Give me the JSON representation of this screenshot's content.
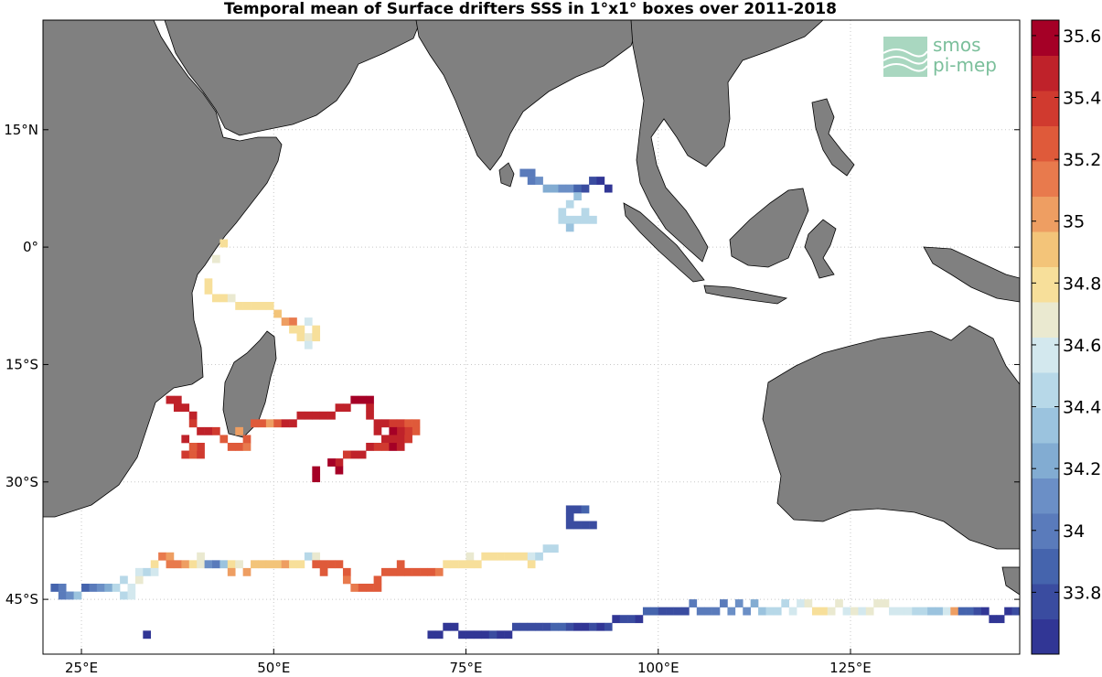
{
  "title": "Temporal mean of Surface drifters SSS in 1°x1° boxes over 2011-2018",
  "logo": {
    "line1": "smos",
    "line2": "pi-mep"
  },
  "map": {
    "lon_range": [
      20,
      147
    ],
    "lat_range": [
      -52,
      29
    ],
    "lon_ticks": [
      {
        "lon": 25,
        "label": "25°E"
      },
      {
        "lon": 50,
        "label": "50°E"
      },
      {
        "lon": 75,
        "label": "75°E"
      },
      {
        "lon": 100,
        "label": "100°E"
      },
      {
        "lon": 125,
        "label": "125°E"
      }
    ],
    "lat_ticks": [
      {
        "lat": 15,
        "label": "15°N"
      },
      {
        "lat": 0,
        "label": "0°"
      },
      {
        "lat": -15,
        "label": "15°S"
      },
      {
        "lat": -30,
        "label": "30°S"
      },
      {
        "lat": -45,
        "label": "45°S"
      }
    ],
    "grid": true,
    "land_color": "#808080"
  },
  "colorbar": {
    "min": 33.6,
    "max": 35.65,
    "tick_labels": [
      "35.6",
      "35.4",
      "35.2",
      "35",
      "34.8",
      "34.6",
      "34.4",
      "34.2",
      "34",
      "33.8"
    ],
    "tick_values": [
      35.6,
      35.4,
      35.2,
      35.0,
      34.8,
      34.6,
      34.4,
      34.2,
      34.0,
      33.8
    ],
    "colors": [
      "#313695",
      "#3a4ca0",
      "#4564ad",
      "#5a7bbb",
      "#6b8fc6",
      "#82acd2",
      "#9bc3de",
      "#b7d8e8",
      "#d3e8ee",
      "#eae9d0",
      "#f7df9a",
      "#f3c479",
      "#ee9e62",
      "#e87a4d",
      "#df5a3a",
      "#d03a2f",
      "#bf222a",
      "#a50026"
    ]
  },
  "chart_data": {
    "type": "heatmap",
    "variable": "SSS",
    "cells": [
      [
        82,
        9,
        34.0
      ],
      [
        83,
        9,
        34.0
      ],
      [
        83,
        8,
        34.05
      ],
      [
        84,
        8,
        34.1
      ],
      [
        85,
        7,
        34.2
      ],
      [
        86,
        7,
        34.2
      ],
      [
        87,
        7,
        34.15
      ],
      [
        88,
        7,
        34.1
      ],
      [
        89,
        7,
        33.9
      ],
      [
        90,
        7,
        33.8
      ],
      [
        91,
        8,
        33.75
      ],
      [
        92,
        8,
        33.7
      ],
      [
        93,
        7,
        33.7
      ],
      [
        89,
        6,
        34.3
      ],
      [
        88,
        5,
        34.4
      ],
      [
        87,
        4,
        34.45
      ],
      [
        87,
        3,
        34.5
      ],
      [
        88,
        3,
        34.4
      ],
      [
        89,
        3,
        34.4
      ],
      [
        90,
        3,
        34.4
      ],
      [
        91,
        3,
        34.4
      ],
      [
        88,
        2,
        34.3
      ],
      [
        90,
        4,
        34.4
      ],
      [
        43,
        0,
        34.8
      ],
      [
        42,
        -2,
        34.7
      ],
      [
        41,
        -5,
        34.85
      ],
      [
        41,
        -6,
        34.85
      ],
      [
        42,
        -7,
        34.8
      ],
      [
        43,
        -7,
        34.8
      ],
      [
        44,
        -7,
        34.65
      ],
      [
        45,
        -8,
        34.8
      ],
      [
        46,
        -8,
        34.85
      ],
      [
        47,
        -8,
        34.8
      ],
      [
        48,
        -8,
        34.8
      ],
      [
        49,
        -8,
        34.8
      ],
      [
        50,
        -9,
        34.95
      ],
      [
        51,
        -10,
        35.0
      ],
      [
        52,
        -10,
        35.1
      ],
      [
        52,
        -11,
        34.8
      ],
      [
        53,
        -11,
        34.8
      ],
      [
        53,
        -12,
        34.75
      ],
      [
        54,
        -12,
        34.7
      ],
      [
        54,
        -10,
        34.55
      ],
      [
        55,
        -12,
        34.8
      ],
      [
        55,
        -11,
        34.8
      ],
      [
        54,
        -13,
        34.6
      ],
      [
        36,
        -20,
        35.45
      ],
      [
        37,
        -20,
        35.5
      ],
      [
        37,
        -21,
        35.5
      ],
      [
        38,
        -21,
        35.45
      ],
      [
        39,
        -22,
        35.5
      ],
      [
        39,
        -23,
        35.4
      ],
      [
        40,
        -24,
        35.5
      ],
      [
        41,
        -24,
        35.45
      ],
      [
        42,
        -24,
        35.35
      ],
      [
        40,
        -26,
        35.4
      ],
      [
        39,
        -26,
        35.3
      ],
      [
        38,
        -25,
        35.45
      ],
      [
        38,
        -27,
        35.4
      ],
      [
        39,
        -27,
        35.3
      ],
      [
        40,
        -27,
        35.35
      ],
      [
        43,
        -25,
        35.3
      ],
      [
        44,
        -26,
        35.25
      ],
      [
        45,
        -26,
        35.3
      ],
      [
        46,
        -26,
        35.1
      ],
      [
        46,
        -25,
        35.2
      ],
      [
        45,
        -24,
        35.0
      ],
      [
        47,
        -23,
        35.2
      ],
      [
        48,
        -23,
        35.3
      ],
      [
        49,
        -23,
        35.0
      ],
      [
        50,
        -23,
        35.2
      ],
      [
        51,
        -23,
        35.5
      ],
      [
        52,
        -23,
        35.45
      ],
      [
        53,
        -22,
        35.45
      ],
      [
        54,
        -22,
        35.5
      ],
      [
        55,
        -22,
        35.5
      ],
      [
        56,
        -22,
        35.5
      ],
      [
        57,
        -22,
        35.5
      ],
      [
        58,
        -21,
        35.5
      ],
      [
        59,
        -21,
        35.5
      ],
      [
        60,
        -20,
        35.55
      ],
      [
        61,
        -20,
        35.55
      ],
      [
        62,
        -20,
        35.55
      ],
      [
        62,
        -21,
        35.5
      ],
      [
        62,
        -22,
        35.5
      ],
      [
        63,
        -23,
        35.45
      ],
      [
        63,
        -24,
        35.5
      ],
      [
        64,
        -23,
        35.45
      ],
      [
        65,
        -23,
        35.4
      ],
      [
        66,
        -23,
        35.35
      ],
      [
        67,
        -23,
        35.3
      ],
      [
        68,
        -23,
        35.25
      ],
      [
        68,
        -24,
        35.3
      ],
      [
        67,
        -24,
        35.4
      ],
      [
        66,
        -24,
        35.5
      ],
      [
        65,
        -24,
        35.55
      ],
      [
        64,
        -25,
        35.45
      ],
      [
        65,
        -25,
        35.45
      ],
      [
        66,
        -25,
        35.5
      ],
      [
        67,
        -25,
        35.4
      ],
      [
        64,
        -26,
        35.4
      ],
      [
        65,
        -26,
        35.55
      ],
      [
        66,
        -26,
        35.5
      ],
      [
        63,
        -26,
        35.4
      ],
      [
        62,
        -26,
        35.45
      ],
      [
        61,
        -27,
        35.45
      ],
      [
        60,
        -27,
        35.5
      ],
      [
        59,
        -27,
        35.4
      ],
      [
        58,
        -28,
        35.5
      ],
      [
        57,
        -28,
        35.55
      ],
      [
        58,
        -29,
        35.55
      ],
      [
        55,
        -29,
        35.6
      ],
      [
        55,
        -30,
        35.6
      ],
      [
        88,
        -34,
        33.8
      ],
      [
        89,
        -34,
        33.8
      ],
      [
        90,
        -34,
        33.85
      ],
      [
        88,
        -35,
        33.8
      ],
      [
        88,
        -36,
        33.75
      ],
      [
        89,
        -36,
        33.75
      ],
      [
        90,
        -36,
        33.75
      ],
      [
        91,
        -36,
        33.75
      ],
      [
        21,
        -44,
        33.9
      ],
      [
        22,
        -44,
        33.95
      ],
      [
        22,
        -45,
        34.05
      ],
      [
        23,
        -45,
        34.1
      ],
      [
        24,
        -45,
        34.3
      ],
      [
        25,
        -44,
        33.85
      ],
      [
        26,
        -44,
        34.0
      ],
      [
        27,
        -44,
        34.1
      ],
      [
        28,
        -44,
        34.2
      ],
      [
        29,
        -44,
        34.4
      ],
      [
        30,
        -43,
        34.45
      ],
      [
        30,
        -45,
        34.5
      ],
      [
        31,
        -44,
        34.6
      ],
      [
        31,
        -45,
        34.55
      ],
      [
        32,
        -43,
        34.65
      ],
      [
        32,
        -42,
        34.55
      ],
      [
        33,
        -42,
        34.5
      ],
      [
        34,
        -41,
        34.75
      ],
      [
        34,
        -42,
        34.6
      ],
      [
        35,
        -40,
        35.1
      ],
      [
        36,
        -40,
        35.0
      ],
      [
        36,
        -41,
        35.1
      ],
      [
        37,
        -41,
        35.1
      ],
      [
        38,
        -41,
        35.0
      ],
      [
        39,
        -41,
        34.85
      ],
      [
        40,
        -40,
        34.65
      ],
      [
        40,
        -41,
        34.7
      ],
      [
        41,
        -41,
        34.1
      ],
      [
        42,
        -41,
        34.05
      ],
      [
        43,
        -41,
        34.3
      ],
      [
        44,
        -41,
        34.8
      ],
      [
        44,
        -42,
        35.0
      ],
      [
        45,
        -41,
        34.65
      ],
      [
        46,
        -42,
        35.0
      ],
      [
        47,
        -41,
        34.9
      ],
      [
        48,
        -41,
        34.9
      ],
      [
        49,
        -41,
        34.9
      ],
      [
        50,
        -41,
        34.9
      ],
      [
        51,
        -41,
        35.0
      ],
      [
        52,
        -41,
        34.85
      ],
      [
        53,
        -41,
        34.75
      ],
      [
        54,
        -40,
        34.5
      ],
      [
        55,
        -40,
        34.7
      ],
      [
        55,
        -41,
        35.3
      ],
      [
        56,
        -41,
        35.3
      ],
      [
        56,
        -42,
        35.3
      ],
      [
        57,
        -41,
        35.25
      ],
      [
        58,
        -41,
        35.2
      ],
      [
        59,
        -42,
        35.2
      ],
      [
        59,
        -43,
        35.1
      ],
      [
        60,
        -44,
        35.1
      ],
      [
        61,
        -44,
        35.2
      ],
      [
        62,
        -44,
        35.25
      ],
      [
        63,
        -44,
        35.3
      ],
      [
        63,
        -43,
        35.3
      ],
      [
        64,
        -42,
        35.3
      ],
      [
        65,
        -42,
        35.3
      ],
      [
        66,
        -42,
        35.3
      ],
      [
        66,
        -41,
        35.2
      ],
      [
        67,
        -42,
        35.3
      ],
      [
        68,
        -42,
        35.3
      ],
      [
        69,
        -42,
        35.3
      ],
      [
        70,
        -42,
        35.3
      ],
      [
        71,
        -42,
        35.15
      ],
      [
        72,
        -41,
        34.85
      ],
      [
        73,
        -41,
        34.8
      ],
      [
        74,
        -41,
        34.8
      ],
      [
        75,
        -40,
        34.7
      ],
      [
        75,
        -41,
        34.8
      ],
      [
        76,
        -41,
        34.85
      ],
      [
        77,
        -40,
        34.8
      ],
      [
        78,
        -40,
        34.85
      ],
      [
        79,
        -40,
        34.8
      ],
      [
        80,
        -40,
        34.8
      ],
      [
        81,
        -40,
        34.85
      ],
      [
        82,
        -40,
        34.75
      ],
      [
        83,
        -40,
        34.6
      ],
      [
        83,
        -41,
        34.8
      ],
      [
        84,
        -40,
        34.5
      ],
      [
        85,
        -39,
        34.5
      ],
      [
        86,
        -39,
        34.45
      ],
      [
        33,
        -50,
        33.65
      ],
      [
        70,
        -50,
        33.65
      ],
      [
        71,
        -50,
        33.7
      ],
      [
        72,
        -49,
        33.65
      ],
      [
        73,
        -49,
        33.7
      ],
      [
        74,
        -50,
        33.7
      ],
      [
        75,
        -50,
        33.65
      ],
      [
        76,
        -50,
        33.65
      ],
      [
        77,
        -50,
        33.7
      ],
      [
        78,
        -50,
        33.75
      ],
      [
        79,
        -50,
        33.7
      ],
      [
        80,
        -50,
        33.7
      ],
      [
        81,
        -49,
        33.8
      ],
      [
        82,
        -49,
        33.8
      ],
      [
        83,
        -49,
        33.75
      ],
      [
        84,
        -49,
        33.75
      ],
      [
        85,
        -49,
        33.8
      ],
      [
        86,
        -49,
        33.85
      ],
      [
        87,
        -49,
        33.85
      ],
      [
        88,
        -49,
        33.8
      ],
      [
        89,
        -49,
        33.7
      ],
      [
        90,
        -49,
        33.7
      ],
      [
        91,
        -49,
        33.75
      ],
      [
        92,
        -49,
        33.7
      ],
      [
        93,
        -49,
        33.8
      ],
      [
        94,
        -48,
        33.7
      ],
      [
        95,
        -48,
        33.75
      ],
      [
        96,
        -48,
        33.75
      ],
      [
        97,
        -48,
        33.7
      ],
      [
        98,
        -47,
        33.85
      ],
      [
        99,
        -47,
        33.85
      ],
      [
        100,
        -47,
        33.75
      ],
      [
        101,
        -47,
        33.75
      ],
      [
        102,
        -47,
        33.75
      ],
      [
        103,
        -47,
        33.8
      ],
      [
        104,
        -46,
        34.0
      ],
      [
        105,
        -47,
        34.0
      ],
      [
        106,
        -47,
        34.0
      ],
      [
        107,
        -47,
        34.0
      ],
      [
        108,
        -46,
        34.05
      ],
      [
        109,
        -47,
        34.1
      ],
      [
        110,
        -46,
        34.1
      ],
      [
        111,
        -47,
        34.1
      ],
      [
        112,
        -46,
        34.25
      ],
      [
        113,
        -47,
        34.3
      ],
      [
        114,
        -47,
        34.45
      ],
      [
        115,
        -47,
        34.5
      ],
      [
        116,
        -46,
        34.4
      ],
      [
        117,
        -47,
        34.55
      ],
      [
        118,
        -46,
        34.6
      ],
      [
        119,
        -46,
        34.65
      ],
      [
        120,
        -47,
        34.75
      ],
      [
        121,
        -47,
        34.8
      ],
      [
        122,
        -47,
        34.7
      ],
      [
        123,
        -46,
        34.65
      ],
      [
        124,
        -47,
        34.6
      ],
      [
        125,
        -47,
        34.65
      ],
      [
        126,
        -47,
        34.55
      ],
      [
        127,
        -47,
        34.65
      ],
      [
        128,
        -46,
        34.7
      ],
      [
        129,
        -46,
        34.65
      ],
      [
        130,
        -47,
        34.6
      ],
      [
        131,
        -47,
        34.55
      ],
      [
        132,
        -47,
        34.55
      ],
      [
        133,
        -47,
        34.5
      ],
      [
        134,
        -47,
        34.4
      ],
      [
        135,
        -47,
        34.35
      ],
      [
        136,
        -47,
        34.3
      ],
      [
        137,
        -47,
        34.55
      ],
      [
        138,
        -47,
        35.0
      ],
      [
        139,
        -47,
        33.9
      ],
      [
        140,
        -47,
        33.85
      ],
      [
        141,
        -47,
        33.75
      ],
      [
        142,
        -47,
        33.7
      ],
      [
        143,
        -48,
        33.7
      ],
      [
        144,
        -48,
        33.65
      ],
      [
        145,
        -47,
        33.7
      ],
      [
        146,
        -47,
        33.75
      ]
    ]
  }
}
